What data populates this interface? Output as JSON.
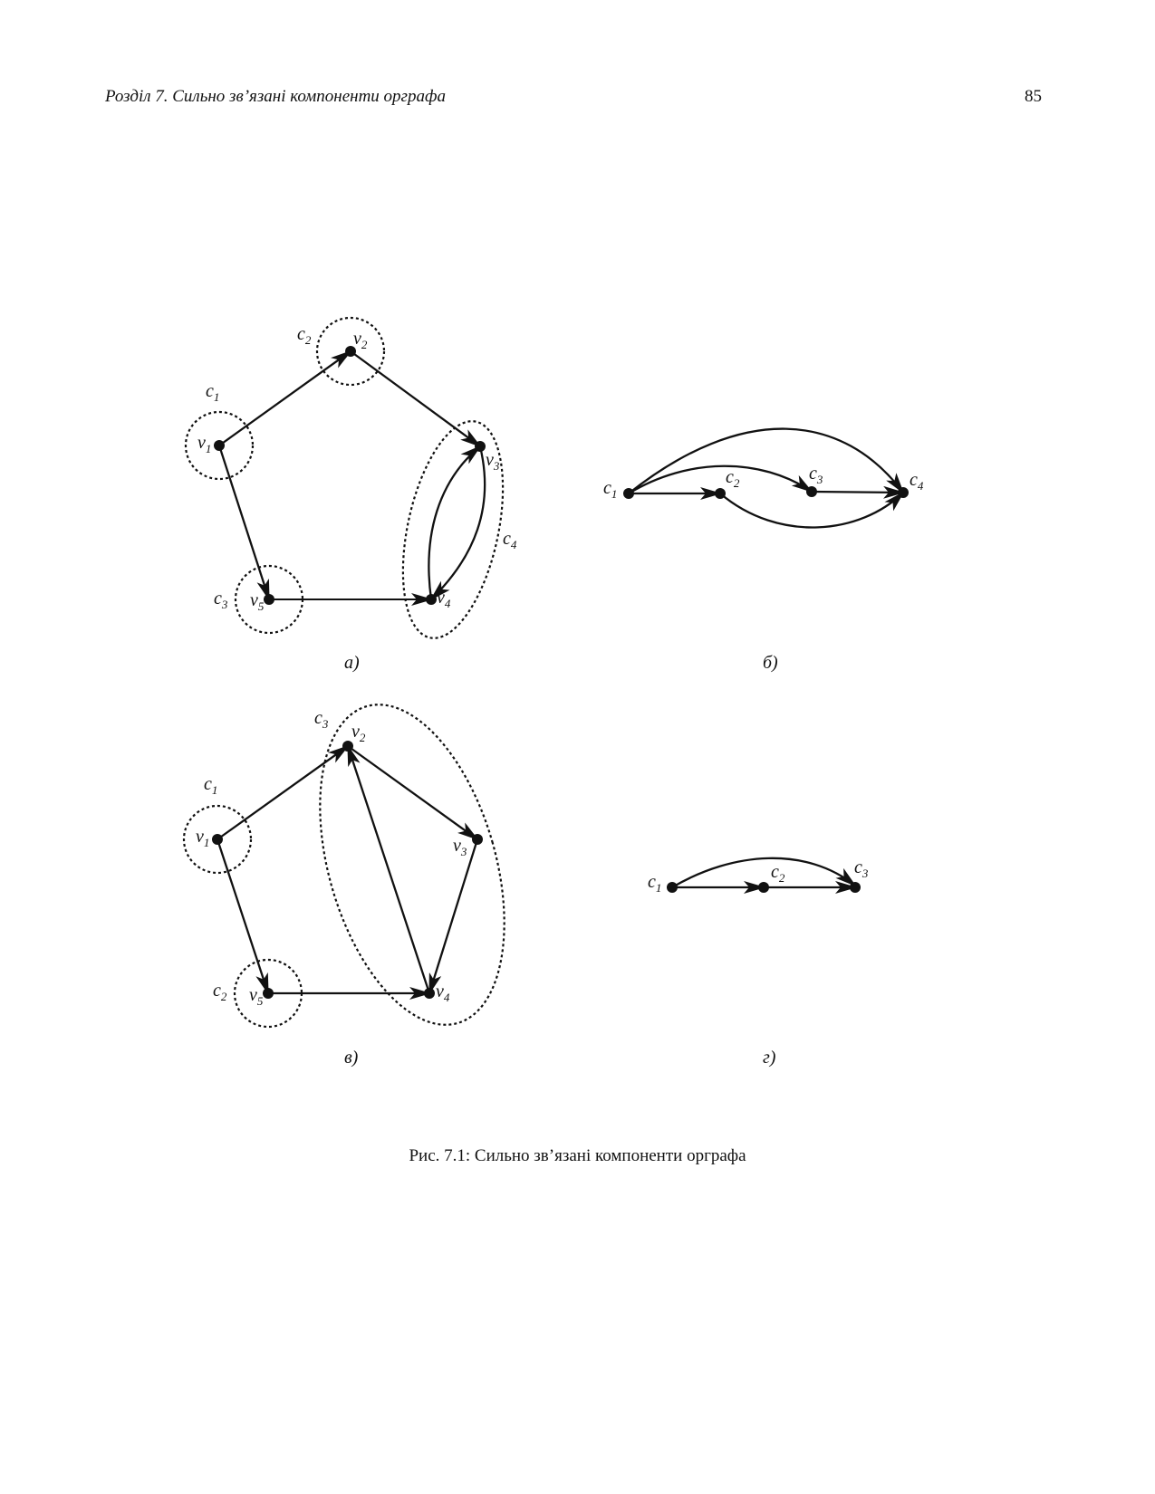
{
  "header": {
    "title": "Розділ 7.  Сильно зв’язані компоненти орграфа",
    "page_number": "85"
  },
  "panels": {
    "a": {
      "caption": "а)",
      "vertices": [
        {
          "id": "v1",
          "base": "v",
          "sub": "1"
        },
        {
          "id": "v2",
          "base": "v",
          "sub": "2"
        },
        {
          "id": "v3",
          "base": "v",
          "sub": "3"
        },
        {
          "id": "v4",
          "base": "v",
          "sub": "4"
        },
        {
          "id": "v5",
          "base": "v",
          "sub": "5"
        }
      ],
      "components": [
        {
          "id": "c1",
          "base": "c",
          "sub": "1"
        },
        {
          "id": "c2",
          "base": "c",
          "sub": "2"
        },
        {
          "id": "c3",
          "base": "c",
          "sub": "3"
        },
        {
          "id": "c4",
          "base": "c",
          "sub": "4"
        }
      ],
      "edges": [
        {
          "from": "v1",
          "to": "v2"
        },
        {
          "from": "v2",
          "to": "v3"
        },
        {
          "from": "v1",
          "to": "v5"
        },
        {
          "from": "v5",
          "to": "v4"
        },
        {
          "from": "v3",
          "to": "v4"
        },
        {
          "from": "v4",
          "to": "v3"
        }
      ]
    },
    "b": {
      "caption": "б)",
      "nodes": [
        {
          "id": "c1",
          "base": "c",
          "sub": "1"
        },
        {
          "id": "c2",
          "base": "c",
          "sub": "2"
        },
        {
          "id": "c3",
          "base": "c",
          "sub": "3"
        },
        {
          "id": "c4",
          "base": "c",
          "sub": "4"
        }
      ],
      "edges": [
        {
          "from": "c1",
          "to": "c2"
        },
        {
          "from": "c1",
          "to": "c3"
        },
        {
          "from": "c1",
          "to": "c4"
        },
        {
          "from": "c3",
          "to": "c4"
        },
        {
          "from": "c2",
          "to": "c4"
        }
      ]
    },
    "c": {
      "caption": "в)",
      "vertices": [
        {
          "id": "v1",
          "base": "v",
          "sub": "1"
        },
        {
          "id": "v2",
          "base": "v",
          "sub": "2"
        },
        {
          "id": "v3",
          "base": "v",
          "sub": "3"
        },
        {
          "id": "v4",
          "base": "v",
          "sub": "4"
        },
        {
          "id": "v5",
          "base": "v",
          "sub": "5"
        }
      ],
      "components": [
        {
          "id": "c1",
          "base": "c",
          "sub": "1"
        },
        {
          "id": "c2",
          "base": "c",
          "sub": "2"
        },
        {
          "id": "c3",
          "base": "c",
          "sub": "3"
        }
      ],
      "edges": [
        {
          "from": "v1",
          "to": "v2"
        },
        {
          "from": "v2",
          "to": "v3"
        },
        {
          "from": "v3",
          "to": "v4"
        },
        {
          "from": "v4",
          "to": "v2"
        },
        {
          "from": "v1",
          "to": "v5"
        },
        {
          "from": "v5",
          "to": "v4"
        }
      ]
    },
    "d": {
      "caption": "г)",
      "nodes": [
        {
          "id": "c1",
          "base": "c",
          "sub": "1"
        },
        {
          "id": "c2",
          "base": "c",
          "sub": "2"
        },
        {
          "id": "c3",
          "base": "c",
          "sub": "3"
        }
      ],
      "edges": [
        {
          "from": "c1",
          "to": "c2"
        },
        {
          "from": "c2",
          "to": "c3"
        },
        {
          "from": "c1",
          "to": "c3"
        }
      ]
    }
  },
  "figure_caption": "Рис. 7.1: Сильно зв’язані компоненти орграфа"
}
